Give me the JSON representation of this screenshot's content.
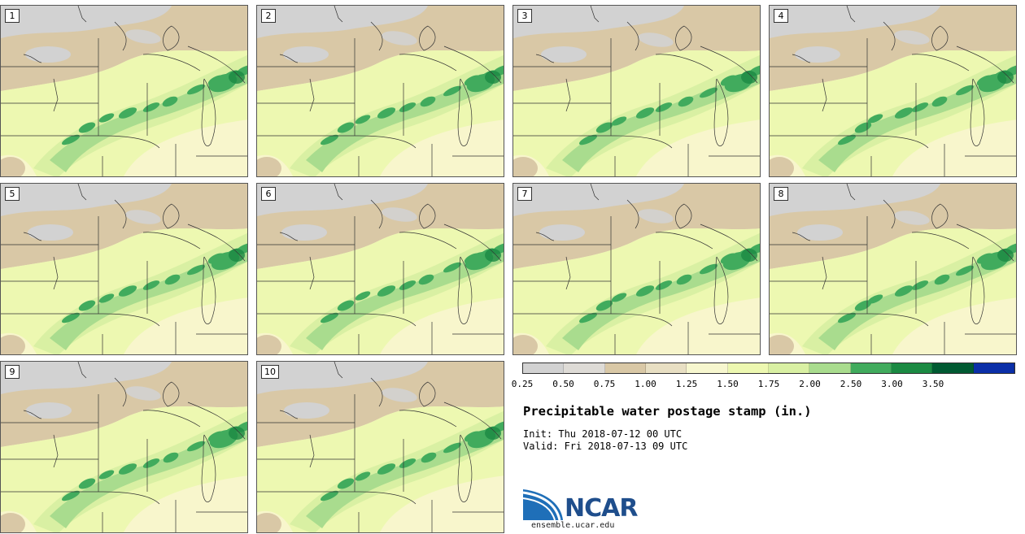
{
  "panels": [
    {
      "label": "1"
    },
    {
      "label": "2"
    },
    {
      "label": "3"
    },
    {
      "label": "4"
    },
    {
      "label": "5"
    },
    {
      "label": "6"
    },
    {
      "label": "7"
    },
    {
      "label": "8"
    },
    {
      "label": "9"
    },
    {
      "label": "10"
    }
  ],
  "colorbar": {
    "ticks": [
      "0.25",
      "0.50",
      "0.75",
      "1.00",
      "1.25",
      "1.50",
      "1.75",
      "2.00",
      "2.50",
      "3.00",
      "3.50"
    ],
    "colors": [
      "#d2d2d2",
      "#dedbd6",
      "#d9c8a6",
      "#e8dfc3",
      "#f7f7cf",
      "#edf8b1",
      "#d9f0a3",
      "#a9dc8e",
      "#41ab5d",
      "#1b8a43",
      "#005a32",
      "#0b2fa8"
    ]
  },
  "map_colors": {
    "gray": "#d2d2d2",
    "tan": "#d9c8a6",
    "cream": "#f8f6cc",
    "light_yellow": "#edf8b1",
    "light_green": "#d9f0a3",
    "mid_green": "#a9dc8e",
    "green": "#41ab5d",
    "dark_green": "#1b8a43"
  },
  "title": "Precipitable water postage stamp (in.)",
  "init_line": "Init: Thu 2018-07-12 00 UTC",
  "valid_line": "Valid: Fri 2018-07-13 09 UTC",
  "logo": {
    "name": "NCAR",
    "url": "ensemble.ucar.edu",
    "icon": "ncar-swoosh-logo"
  }
}
